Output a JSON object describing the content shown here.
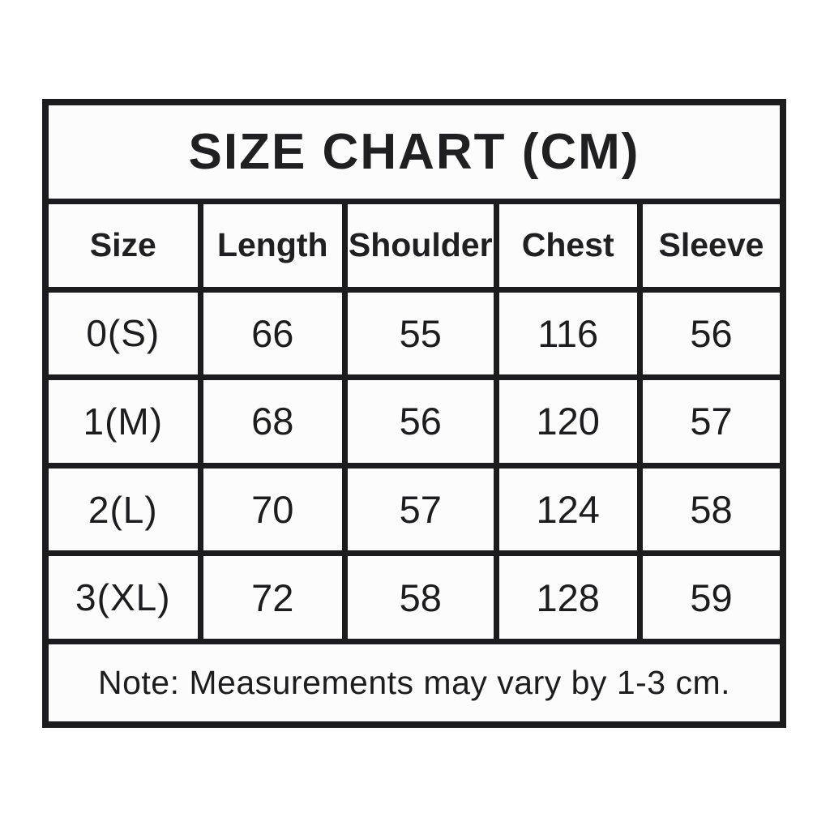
{
  "style": {
    "page_background": "#ffffff",
    "cell_background": "#fcfcfc",
    "border_color": "#1c1c1e",
    "text_color": "#1d1d1f"
  },
  "chart_data": {
    "type": "table",
    "title": "SIZE CHART (CM)",
    "unit": "cm",
    "columns": [
      "Size",
      "Length",
      "Shoulder",
      "Chest",
      "Sleeve"
    ],
    "rows": [
      [
        "0(S)",
        "66",
        "55",
        "116",
        "56"
      ],
      [
        "1(M)",
        "68",
        "56",
        "120",
        "57"
      ],
      [
        "2(L)",
        "70",
        "57",
        "124",
        "58"
      ],
      [
        "3(XL)",
        "72",
        "58",
        "128",
        "59"
      ]
    ],
    "note": "Note: Measurements may vary by 1-3 cm."
  }
}
